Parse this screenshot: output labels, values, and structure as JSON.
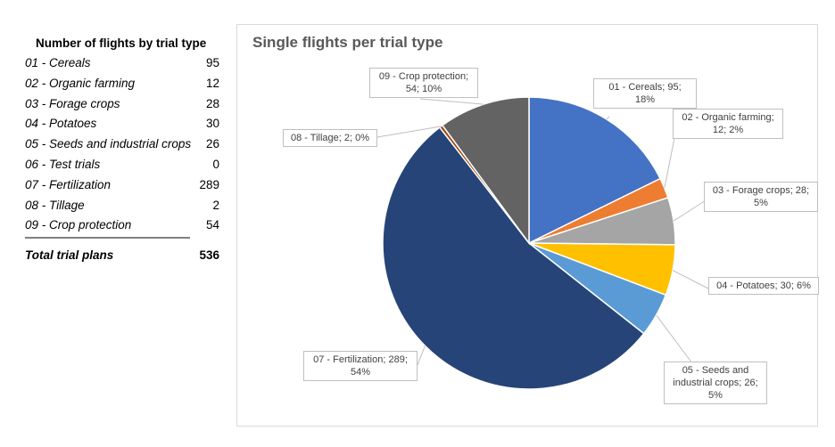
{
  "table": {
    "title": "Number of flights by trial type",
    "rows": [
      {
        "label": "01 - Cereals",
        "value": "95"
      },
      {
        "label": "02 - Organic farming",
        "value": "12"
      },
      {
        "label": "03 - Forage crops",
        "value": "28"
      },
      {
        "label": "04 - Potatoes",
        "value": "30"
      },
      {
        "label": "05 - Seeds and industrial crops",
        "value": "26"
      },
      {
        "label": "06 - Test trials",
        "value": "0"
      },
      {
        "label": "07 - Fertilization",
        "value": "289"
      },
      {
        "label": "08 - Tillage",
        "value": "2"
      },
      {
        "label": "09 - Crop protection",
        "value": "54"
      }
    ],
    "total_label": "Total trial plans",
    "total_value": "536"
  },
  "chart_data": {
    "type": "pie",
    "title": "Single flights per trial type",
    "legend": "none",
    "slices": [
      {
        "name": "01 - Cereals",
        "value": 95,
        "percent": "18%",
        "label": "01 - Cereals; 95; 18%",
        "color": "#4472c4"
      },
      {
        "name": "02 - Organic farming",
        "value": 12,
        "percent": "2%",
        "label": "02 - Organic farming; 12; 2%",
        "color": "#ed7d31"
      },
      {
        "name": "03 - Forage crops",
        "value": 28,
        "percent": "5%",
        "label": "03 - Forage crops; 28; 5%",
        "color": "#a5a5a5"
      },
      {
        "name": "04 - Potatoes",
        "value": 30,
        "percent": "6%",
        "label": "04 - Potatoes; 30; 6%",
        "color": "#ffc000"
      },
      {
        "name": "05 - Seeds and industrial crops",
        "value": 26,
        "percent": "5%",
        "label": "05 - Seeds and industrial crops; 26; 5%",
        "color": "#5b9bd5"
      },
      {
        "name": "06 - Test trials",
        "value": 0,
        "percent": "0%",
        "label": "",
        "color": "#70ad47"
      },
      {
        "name": "07 - Fertilization",
        "value": 289,
        "percent": "54%",
        "label": "07 - Fertilization; 289; 54%",
        "color": "#264478"
      },
      {
        "name": "08 - Tillage",
        "value": 2,
        "percent": "0%",
        "label": "08 - Tillage; 2; 0%",
        "color": "#9e480e"
      },
      {
        "name": "09 - Crop protection",
        "value": 54,
        "percent": "10%",
        "label": "09 - Crop protection; 54; 10%",
        "color": "#636363"
      }
    ]
  }
}
